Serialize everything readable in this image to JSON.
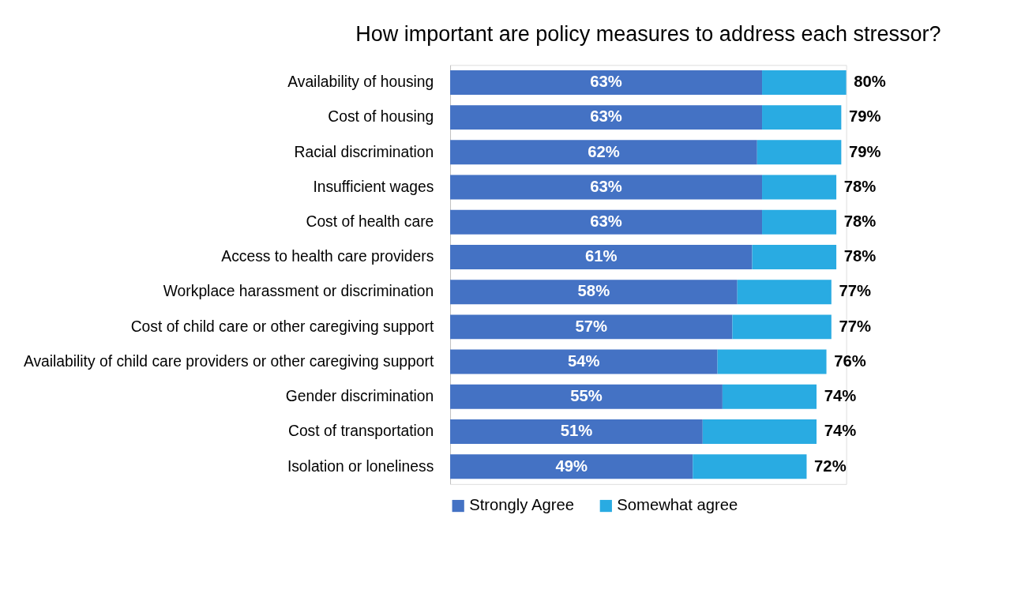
{
  "chart_data": {
    "type": "bar",
    "title": "How important are policy measures to address each stressor?",
    "orientation": "horizontal",
    "stacked": true,
    "legend": "bottom",
    "categories": [
      "Availability of housing",
      "Cost of housing",
      "Racial discrimination",
      "Insufficient wages",
      "Cost of health care",
      "Access to health care providers",
      "Workplace harassment or discrimination",
      "Cost of child care or other caregiving support",
      "Availability of child care providers or other caregiving support",
      "Gender discrimination",
      "Cost of transportation",
      "Isolation or loneliness"
    ],
    "series": [
      {
        "name": "Strongly Agree",
        "color": "#4472c4",
        "values": [
          63,
          63,
          62,
          63,
          63,
          61,
          58,
          57,
          54,
          55,
          51,
          49
        ],
        "value_labels": [
          "63%",
          "63%",
          "62%",
          "63%",
          "63%",
          "61%",
          "58%",
          "57%",
          "54%",
          "55%",
          "51%",
          "49%"
        ]
      },
      {
        "name": "Somewhat agree",
        "color": "#29abe2",
        "values": [
          17,
          16,
          17,
          15,
          15,
          17,
          19,
          20,
          22,
          19,
          23,
          23
        ]
      }
    ],
    "totals": [
      "80%",
      "79%",
      "79%",
      "78%",
      "78%",
      "78%",
      "77%",
      "77%",
      "76%",
      "74%",
      "74%",
      "72%"
    ]
  }
}
